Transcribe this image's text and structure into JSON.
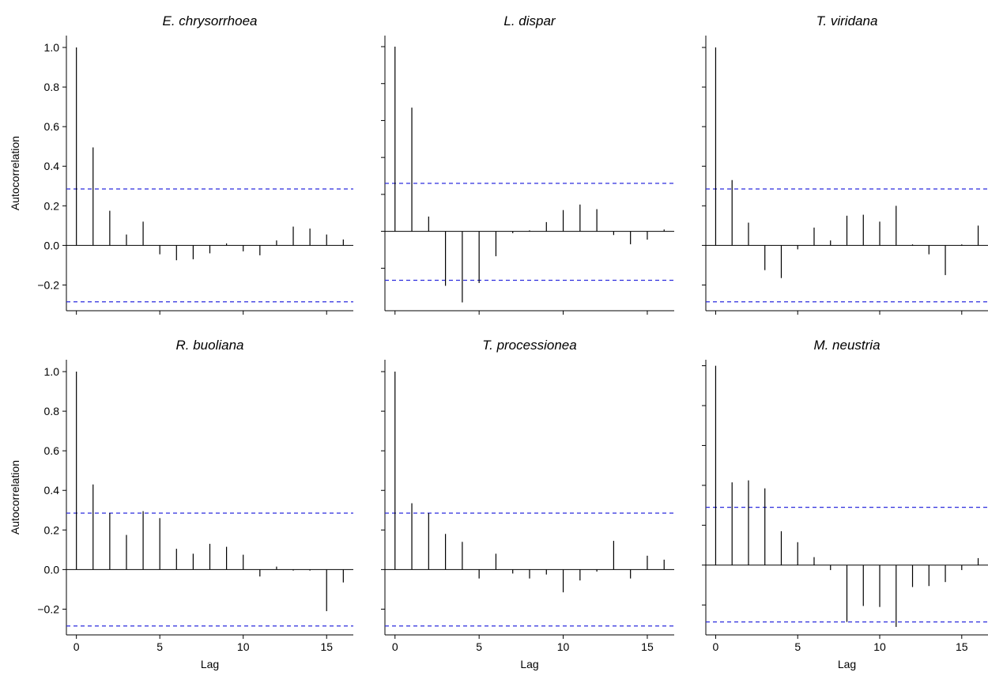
{
  "ylabel": "Autocorrelation",
  "xlabel": "Lag",
  "chart_data": [
    {
      "type": "bar",
      "title": "E. chrysorrhoea",
      "ylabel": "Autocorrelation",
      "xlabel": "",
      "x": [
        0,
        1,
        2,
        3,
        4,
        5,
        6,
        7,
        8,
        9,
        10,
        11,
        12,
        13,
        14,
        15,
        16
      ],
      "values": [
        1.0,
        0.495,
        0.175,
        0.055,
        0.12,
        -0.045,
        -0.075,
        -0.07,
        -0.04,
        0.01,
        -0.03,
        -0.05,
        0.025,
        0.095,
        0.085,
        0.055,
        0.03
      ],
      "ci": [
        0.285,
        -0.285
      ],
      "xlim": [
        -0.6,
        16.6
      ],
      "ylim": [
        -0.33,
        1.06
      ],
      "xticks": [
        0,
        5,
        10,
        15
      ],
      "yticks": [
        1.0,
        0.8,
        0.6,
        0.4,
        0.2,
        0.0,
        -0.2
      ],
      "yticklabels": [
        "1.0",
        "0.8",
        "0.6",
        "0.4",
        "0.2",
        "0.0",
        "−0.2"
      ],
      "xticklabels": []
    },
    {
      "type": "bar",
      "title": "L. dispar",
      "ylabel": "",
      "xlabel": "",
      "x": [
        0,
        1,
        2,
        3,
        4,
        5,
        6,
        7,
        8,
        9,
        10,
        11,
        12,
        13,
        14,
        15,
        16
      ],
      "values": [
        1.0,
        0.67,
        0.08,
        -0.295,
        -0.385,
        -0.28,
        -0.135,
        -0.01,
        0.005,
        0.05,
        0.115,
        0.145,
        0.12,
        -0.02,
        -0.07,
        -0.045,
        0.01
      ],
      "ci": [
        0.26,
        -0.265
      ],
      "xlim": [
        -0.6,
        16.6
      ],
      "ylim": [
        -0.43,
        1.06
      ],
      "xticks": [
        0,
        5,
        10,
        15
      ],
      "yticks": [
        1.0,
        0.8,
        0.6,
        0.4,
        0.2,
        0.0,
        -0.2
      ],
      "yticklabels": [],
      "xticklabels": []
    },
    {
      "type": "bar",
      "title": "T. viridana",
      "ylabel": "",
      "xlabel": "",
      "x": [
        0,
        1,
        2,
        3,
        4,
        5,
        6,
        7,
        8,
        9,
        10,
        11,
        12,
        13,
        14,
        15,
        16
      ],
      "values": [
        1.0,
        0.33,
        0.115,
        -0.125,
        -0.165,
        -0.02,
        0.09,
        0.025,
        0.15,
        0.155,
        0.12,
        0.2,
        0.005,
        -0.045,
        -0.15,
        0.005,
        0.1
      ],
      "ci": [
        0.285,
        -0.285
      ],
      "xlim": [
        -0.6,
        16.6
      ],
      "ylim": [
        -0.33,
        1.06
      ],
      "xticks": [
        0,
        5,
        10,
        15
      ],
      "yticks": [
        1.0,
        0.8,
        0.6,
        0.4,
        0.2,
        0.0,
        -0.2
      ],
      "yticklabels": [],
      "xticklabels": []
    },
    {
      "type": "bar",
      "title": "R. buoliana",
      "ylabel": "Autocorrelation",
      "xlabel": "Lag",
      "x": [
        0,
        1,
        2,
        3,
        4,
        5,
        6,
        7,
        8,
        9,
        10,
        11,
        12,
        13,
        14,
        15,
        16
      ],
      "values": [
        1.0,
        0.43,
        0.285,
        0.175,
        0.295,
        0.26,
        0.105,
        0.08,
        0.13,
        0.115,
        0.075,
        -0.035,
        0.015,
        -0.005,
        -0.005,
        -0.21,
        -0.065
      ],
      "ci": [
        0.285,
        -0.285
      ],
      "xlim": [
        -0.6,
        16.6
      ],
      "ylim": [
        -0.33,
        1.06
      ],
      "xticks": [
        0,
        5,
        10,
        15
      ],
      "yticks": [
        1.0,
        0.8,
        0.6,
        0.4,
        0.2,
        0.0,
        -0.2
      ],
      "yticklabels": [
        "1.0",
        "0.8",
        "0.6",
        "0.4",
        "0.2",
        "0.0",
        "−0.2"
      ],
      "xticklabels": [
        "0",
        "5",
        "10",
        "15"
      ]
    },
    {
      "type": "bar",
      "title": "T. processionea",
      "ylabel": "",
      "xlabel": "Lag",
      "x": [
        0,
        1,
        2,
        3,
        4,
        5,
        6,
        7,
        8,
        9,
        10,
        11,
        12,
        13,
        14,
        15,
        16
      ],
      "values": [
        1.0,
        0.335,
        0.285,
        0.18,
        0.14,
        -0.045,
        0.08,
        -0.02,
        -0.045,
        -0.025,
        -0.115,
        -0.055,
        -0.01,
        0.145,
        -0.045,
        0.07,
        0.05
      ],
      "ci": [
        0.285,
        -0.285
      ],
      "xlim": [
        -0.6,
        16.6
      ],
      "ylim": [
        -0.33,
        1.06
      ],
      "xticks": [
        0,
        5,
        10,
        15
      ],
      "yticks": [
        1.0,
        0.8,
        0.6,
        0.4,
        0.2,
        0.0,
        -0.2
      ],
      "yticklabels": [],
      "xticklabels": [
        "0",
        "5",
        "10",
        "15"
      ]
    },
    {
      "type": "bar",
      "title": "M. neustria",
      "ylabel": "",
      "xlabel": "Lag",
      "x": [
        0,
        1,
        2,
        3,
        4,
        5,
        6,
        7,
        8,
        9,
        10,
        11,
        12,
        13,
        14,
        15,
        16
      ],
      "values": [
        1.0,
        0.415,
        0.425,
        0.385,
        0.17,
        0.115,
        0.04,
        -0.025,
        -0.285,
        -0.205,
        -0.21,
        -0.31,
        -0.11,
        -0.105,
        -0.085,
        -0.025,
        0.035
      ],
      "ci": [
        0.29,
        -0.285
      ],
      "xlim": [
        -0.6,
        16.6
      ],
      "ylim": [
        -0.35,
        1.03
      ],
      "xticks": [
        0,
        5,
        10,
        15
      ],
      "yticks": [
        1.0,
        0.8,
        0.6,
        0.4,
        0.2,
        0.0,
        -0.2
      ],
      "yticklabels": [],
      "xticklabels": [
        "0",
        "5",
        "10",
        "15"
      ]
    }
  ]
}
